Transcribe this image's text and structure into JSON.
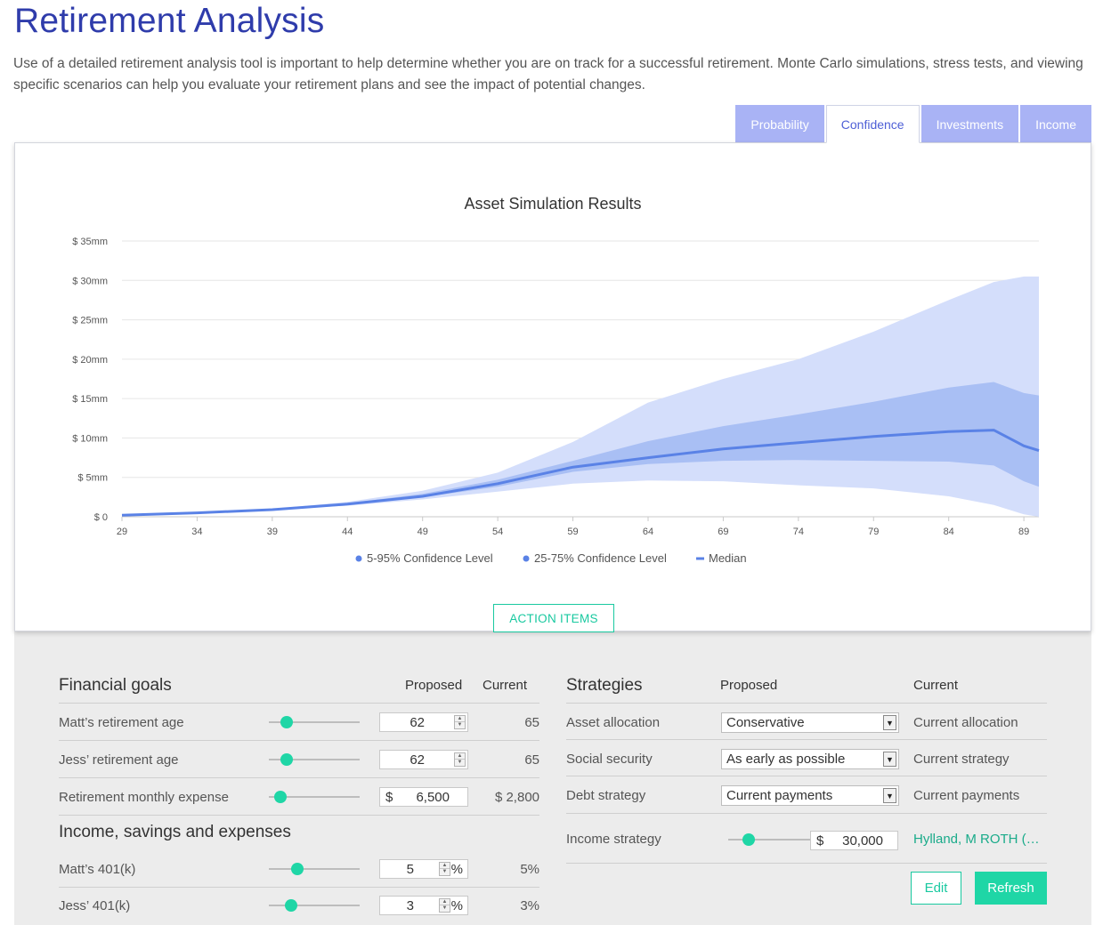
{
  "page": {
    "title": "Retirement Analysis",
    "intro": "Use of a detailed retirement analysis tool is important to help determine whether you are on track for a successful retirement. Monte Carlo simulations, stress tests, and viewing specific scenarios can help you evaluate your retirement plans and see the impact of potential changes."
  },
  "tabs": [
    {
      "label": "Probability",
      "active": false
    },
    {
      "label": "Confidence",
      "active": true
    },
    {
      "label": "Investments",
      "active": false
    },
    {
      "label": "Income",
      "active": false
    }
  ],
  "chart_data": {
    "type": "area",
    "title": "Asset Simulation Results",
    "xlabel": "",
    "ylabel": "",
    "x_ticks": [
      29,
      34,
      39,
      44,
      49,
      54,
      59,
      64,
      69,
      74,
      79,
      84,
      89
    ],
    "y_ticks": [
      "$ 0",
      "$ 5mm",
      "$ 10mm",
      "$ 15mm",
      "$ 20mm",
      "$ 25mm",
      "$ 30mm",
      "$ 35mm"
    ],
    "xlim": [
      29,
      90
    ],
    "ylim": [
      0,
      35
    ],
    "y_unit": "mm",
    "grid": true,
    "legend_position": "bottom",
    "colors": {
      "band_outer": "#d4defb",
      "band_inner": "#a9bff4",
      "median": "#5a82e6"
    },
    "x": [
      29,
      34,
      39,
      44,
      49,
      54,
      59,
      64,
      69,
      74,
      79,
      84,
      87,
      89,
      90
    ],
    "series": [
      {
        "name": "5-95% Confidence Level",
        "kind": "band",
        "low": [
          0.2,
          0.5,
          0.9,
          1.4,
          2.2,
          3.2,
          4.2,
          4.6,
          4.5,
          4.0,
          3.6,
          2.6,
          1.5,
          0.3,
          0.0
        ],
        "high": [
          0.2,
          0.5,
          1.0,
          1.9,
          3.3,
          5.6,
          9.5,
          14.5,
          17.5,
          20.0,
          23.5,
          27.5,
          29.8,
          30.5,
          30.5
        ]
      },
      {
        "name": "25-75% Confidence Level",
        "kind": "band",
        "low": [
          0.2,
          0.5,
          0.9,
          1.5,
          2.5,
          3.8,
          5.7,
          6.7,
          7.1,
          7.2,
          7.1,
          7.0,
          6.5,
          4.5,
          3.8
        ],
        "high": [
          0.2,
          0.5,
          0.9,
          1.7,
          2.9,
          4.7,
          7.1,
          9.6,
          11.5,
          13.0,
          14.6,
          16.4,
          17.1,
          15.7,
          15.4
        ]
      },
      {
        "name": "Median",
        "kind": "line",
        "values": [
          0.2,
          0.5,
          0.9,
          1.6,
          2.6,
          4.2,
          6.3,
          7.5,
          8.6,
          9.4,
          10.2,
          10.8,
          11.0,
          9.0,
          8.4
        ]
      }
    ]
  },
  "action_items": {
    "label": "ACTION ITEMS"
  },
  "goals": {
    "heading": "Financial goals",
    "col_proposed": "Proposed",
    "col_current": "Current",
    "rows": [
      {
        "label": "Matt’s retirement age",
        "value": "62",
        "current": "65",
        "slider": 0.15
      },
      {
        "label": "Jess’ retirement age",
        "value": "62",
        "current": "65",
        "slider": 0.15
      },
      {
        "label": "Retirement monthly expense",
        "currency": "$",
        "value": "6,500",
        "current": "$ 2,800",
        "slider": 0.07
      }
    ]
  },
  "income": {
    "heading": "Income, savings and expenses",
    "rows": [
      {
        "label": "Matt’s 401(k)",
        "value": "5",
        "unit": "%",
        "current": "5%",
        "slider": 0.28
      },
      {
        "label": "Jess’ 401(k)",
        "value": "3",
        "unit": "%",
        "current": "3%",
        "slider": 0.2
      }
    ]
  },
  "strategies": {
    "heading": "Strategies",
    "col_proposed": "Proposed",
    "col_current": "Current",
    "rows": [
      {
        "label": "Asset allocation",
        "value": "Conservative",
        "current": "Current allocation"
      },
      {
        "label": "Social security",
        "value": "As early as possible",
        "current": "Current strategy"
      },
      {
        "label": "Debt strategy",
        "value": "Current payments",
        "current": "Current payments"
      }
    ],
    "income_strategy": {
      "label": "Income strategy",
      "currency": "$",
      "value": "30,000",
      "current": "Hylland, M ROTH (…",
      "slider": 0.18
    },
    "edit_label": "Edit",
    "refresh_label": "Refresh"
  }
}
